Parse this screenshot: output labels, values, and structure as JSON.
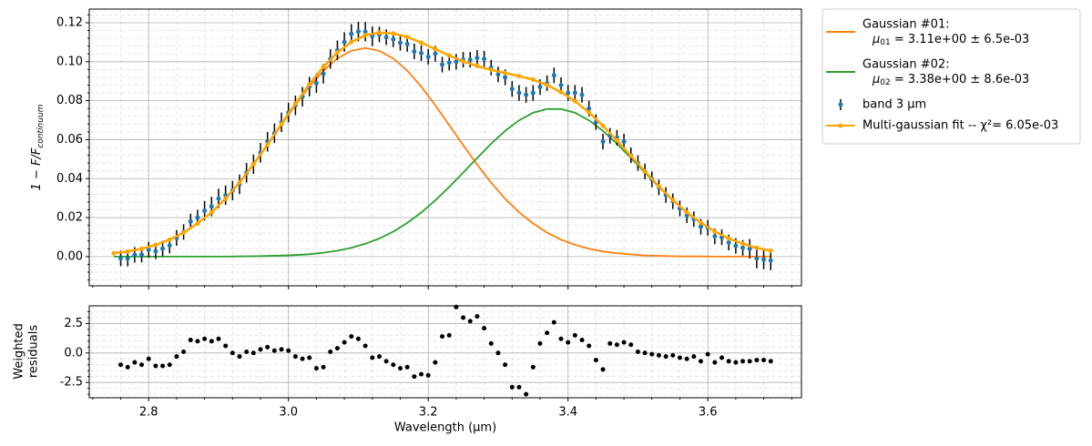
{
  "chart_data": [
    {
      "type": "line",
      "ylabel": {
        "text": "1 − F/F",
        "sub": "continuum"
      },
      "ylim": [
        -0.015,
        0.127
      ],
      "yticks": [
        {
          "value": 0,
          "label": "0.00"
        },
        {
          "value": 0.02,
          "label": "0.02"
        },
        {
          "value": 0.04,
          "label": "0.04"
        },
        {
          "value": 0.06,
          "label": "0.06"
        },
        {
          "value": 0.08,
          "label": "0.08"
        },
        {
          "value": 0.1,
          "label": "0.10"
        },
        {
          "value": 0.12,
          "label": "0.12"
        }
      ],
      "yminorticks": [
        -0.012,
        -0.008,
        -0.004,
        0.004,
        0.008,
        0.012,
        0.016,
        0.024,
        0.028,
        0.032,
        0.036,
        0.044,
        0.048,
        0.052,
        0.056,
        0.064,
        0.068,
        0.072,
        0.076,
        0.084,
        0.088,
        0.092,
        0.096,
        0.104,
        0.108,
        0.112,
        0.116,
        0.124
      ],
      "grid": true,
      "legend": "outside-right",
      "series": [
        {
          "name": "Gaussian #01:",
          "detail": {
            "symbol": "μ",
            "sub": "01",
            "text": " =  3.11e+00 ±  6.5e-03"
          },
          "color": "#ff7f0e",
          "x": [
            2.75,
            2.77,
            2.79,
            2.81,
            2.83,
            2.85,
            2.87,
            2.89,
            2.91,
            2.93,
            2.95,
            2.97,
            2.99,
            3.01,
            3.03,
            3.05,
            3.07,
            3.09,
            3.11,
            3.13,
            3.15,
            3.17,
            3.19,
            3.21,
            3.23,
            3.25,
            3.27,
            3.29,
            3.31,
            3.33,
            3.35,
            3.37,
            3.39,
            3.41,
            3.43,
            3.45,
            3.47,
            3.49,
            3.51,
            3.53,
            3.55,
            3.57,
            3.59,
            3.61,
            3.63,
            3.65,
            3.67,
            3.69
          ],
          "values": [
            0.0017,
            0.0026,
            0.004,
            0.006,
            0.0087,
            0.0123,
            0.017,
            0.0227,
            0.0297,
            0.0379,
            0.0472,
            0.0571,
            0.0675,
            0.0777,
            0.0872,
            0.0954,
            0.1017,
            0.1056,
            0.107,
            0.1056,
            0.1017,
            0.0954,
            0.0872,
            0.0777,
            0.0675,
            0.0571,
            0.0472,
            0.0379,
            0.0297,
            0.0227,
            0.017,
            0.0123,
            0.0087,
            0.006,
            0.004,
            0.0026,
            0.0017,
            0.0011,
            0.0006,
            0.0004,
            0.0002,
            0.0001,
            0.0001,
            0,
            0,
            0,
            0,
            0
          ]
        },
        {
          "name": "Gaussian #02:",
          "detail": {
            "symbol": "μ",
            "sub": "02",
            "text": " =  3.38e+00 ±  8.6e-03"
          },
          "color": "#2ca02c",
          "x": [
            2.75,
            2.77,
            2.79,
            2.81,
            2.83,
            2.85,
            2.87,
            2.89,
            2.91,
            2.93,
            2.95,
            2.97,
            2.99,
            3.01,
            3.03,
            3.05,
            3.07,
            3.09,
            3.11,
            3.13,
            3.15,
            3.17,
            3.19,
            3.21,
            3.23,
            3.25,
            3.27,
            3.29,
            3.31,
            3.33,
            3.35,
            3.37,
            3.39,
            3.41,
            3.43,
            3.45,
            3.47,
            3.49,
            3.51,
            3.53,
            3.55,
            3.57,
            3.59,
            3.61,
            3.63,
            3.65,
            3.67,
            3.69
          ],
          "values": [
            0,
            0,
            0,
            0,
            0,
            0,
            0,
            0,
            0,
            0.0001,
            0.0002,
            0.0003,
            0.0005,
            0.0008,
            0.0012,
            0.002,
            0.003,
            0.0045,
            0.0066,
            0.0093,
            0.0128,
            0.0173,
            0.0226,
            0.0288,
            0.0357,
            0.0431,
            0.0506,
            0.0579,
            0.0645,
            0.0699,
            0.0738,
            0.0757,
            0.0757,
            0.0738,
            0.0699,
            0.0645,
            0.0579,
            0.0506,
            0.0431,
            0.0357,
            0.0288,
            0.0226,
            0.0173,
            0.0128,
            0.0093,
            0.0066,
            0.0045,
            0.003
          ]
        },
        {
          "name": "band 3 μm",
          "color": "#1f77b4",
          "error_color": "#000000",
          "x": [
            2.76,
            2.77,
            2.78,
            2.79,
            2.8,
            2.81,
            2.82,
            2.83,
            2.84,
            2.85,
            2.86,
            2.87,
            2.88,
            2.89,
            2.9,
            2.91,
            2.92,
            2.93,
            2.94,
            2.95,
            2.96,
            2.97,
            2.98,
            2.99,
            3,
            3.01,
            3.02,
            3.03,
            3.04,
            3.05,
            3.06,
            3.07,
            3.08,
            3.09,
            3.1,
            3.11,
            3.12,
            3.13,
            3.14,
            3.15,
            3.16,
            3.17,
            3.18,
            3.19,
            3.2,
            3.21,
            3.22,
            3.23,
            3.24,
            3.25,
            3.26,
            3.27,
            3.28,
            3.29,
            3.3,
            3.31,
            3.32,
            3.33,
            3.34,
            3.35,
            3.36,
            3.37,
            3.38,
            3.39,
            3.4,
            3.41,
            3.42,
            3.43,
            3.44,
            3.45,
            3.46,
            3.47,
            3.48,
            3.49,
            3.5,
            3.51,
            3.52,
            3.53,
            3.54,
            3.55,
            3.56,
            3.57,
            3.58,
            3.59,
            3.6,
            3.61,
            3.62,
            3.63,
            3.64,
            3.65,
            3.66,
            3.67,
            3.68,
            3.69
          ],
          "values": [
            -0.0009,
            -0.001,
            0.0009,
            0.001,
            0.0035,
            0.0027,
            0.0041,
            0.0057,
            0.0096,
            0.0126,
            0.018,
            0.02,
            0.0235,
            0.0257,
            0.0298,
            0.0315,
            0.0339,
            0.0371,
            0.043,
            0.0474,
            0.0533,
            0.0589,
            0.0633,
            0.0689,
            0.0739,
            0.0776,
            0.082,
            0.0872,
            0.089,
            0.0938,
            0.1014,
            0.1059,
            0.1101,
            0.1143,
            0.1155,
            0.1154,
            0.1131,
            0.114,
            0.1126,
            0.1115,
            0.1097,
            0.1091,
            0.1053,
            0.1044,
            0.1025,
            0.1041,
            0.0985,
            0.0995,
            0.1,
            0.101,
            0.101,
            0.102,
            0.1015,
            0.097,
            0.0935,
            0.092,
            0.086,
            0.084,
            0.083,
            0.084,
            0.087,
            0.089,
            0.093,
            0.088,
            0.084,
            0.084,
            0.083,
            0.076,
            0.069,
            0.059,
            0.062,
            0.061,
            0.059,
            0.052,
            0.048,
            0.0437,
            0.0396,
            0.0355,
            0.0316,
            0.0284,
            0.0247,
            0.0212,
            0.0192,
            0.0153,
            0.0148,
            0.0104,
            0.0099,
            0.0072,
            0.0055,
            0.0045,
            0.004,
            -0.001,
            -0.0015,
            -0.002
          ],
          "errors": [
            0.004,
            0.004,
            0.004,
            0.004,
            0.004,
            0.004,
            0.004,
            0.004,
            0.004,
            0.004,
            0.004,
            0.004,
            0.005,
            0.005,
            0.005,
            0.005,
            0.005,
            0.005,
            0.005,
            0.005,
            0.005,
            0.005,
            0.005,
            0.005,
            0.005,
            0.005,
            0.005,
            0.005,
            0.005,
            0.005,
            0.005,
            0.005,
            0.005,
            0.005,
            0.005,
            0.005,
            0.005,
            0.004,
            0.004,
            0.004,
            0.004,
            0.004,
            0.004,
            0.004,
            0.004,
            0.004,
            0.004,
            0.004,
            0.004,
            0.004,
            0.004,
            0.004,
            0.004,
            0.004,
            0.004,
            0.004,
            0.004,
            0.004,
            0.004,
            0.004,
            0.004,
            0.004,
            0.004,
            0.004,
            0.004,
            0.004,
            0.004,
            0.004,
            0.004,
            0.004,
            0.004,
            0.004,
            0.004,
            0.004,
            0.004,
            0.004,
            0.004,
            0.004,
            0.004,
            0.004,
            0.004,
            0.004,
            0.004,
            0.004,
            0.004,
            0.004,
            0.004,
            0.004,
            0.004,
            0.004,
            0.005,
            0.005,
            0.005,
            0.005
          ]
        },
        {
          "name": "Multi-gaussian fit -- χ²=  6.05e-03",
          "color": "#ffa500",
          "x": [
            2.75,
            2.77,
            2.79,
            2.81,
            2.83,
            2.85,
            2.87,
            2.89,
            2.91,
            2.93,
            2.95,
            2.97,
            2.99,
            3.01,
            3.03,
            3.05,
            3.07,
            3.09,
            3.11,
            3.13,
            3.15,
            3.17,
            3.19,
            3.21,
            3.23,
            3.25,
            3.27,
            3.29,
            3.31,
            3.33,
            3.35,
            3.37,
            3.39,
            3.41,
            3.43,
            3.45,
            3.47,
            3.49,
            3.51,
            3.53,
            3.55,
            3.57,
            3.59,
            3.61,
            3.63,
            3.65,
            3.67,
            3.69
          ],
          "values": [
            0.0017,
            0.0026,
            0.004,
            0.006,
            0.0087,
            0.0123,
            0.017,
            0.0227,
            0.0297,
            0.038,
            0.0474,
            0.0574,
            0.068,
            0.0785,
            0.0884,
            0.0974,
            0.1047,
            0.1101,
            0.1136,
            0.1149,
            0.1145,
            0.1127,
            0.1098,
            0.1065,
            0.1032,
            0.1002,
            0.0978,
            0.0958,
            0.0942,
            0.0926,
            0.0908,
            0.088,
            0.0844,
            0.0798,
            0.0739,
            0.0671,
            0.0596,
            0.0517,
            0.0437,
            0.0361,
            0.029,
            0.0227,
            0.0174,
            0.0128,
            0.0093,
            0.0066,
            0.0045,
            0.003
          ]
        }
      ]
    },
    {
      "type": "scatter",
      "ylabel": [
        "Weighted",
        "residuals"
      ],
      "xlabel": "Wavelength (μm)",
      "color": "#000000",
      "xlim": [
        2.715,
        3.734
      ],
      "xticks": [
        2.8,
        {
          "value": 3,
          "label": "3.0"
        },
        3.2,
        3.4,
        3.6
      ],
      "xminorticks": [
        2.72,
        2.76,
        2.84,
        2.88,
        2.92,
        2.96,
        3.04,
        3.08,
        3.12,
        3.16,
        3.24,
        3.28,
        3.32,
        3.36,
        3.44,
        3.48,
        3.52,
        3.56,
        3.64,
        3.68,
        3.72
      ],
      "ylim": [
        -3.8,
        4.0
      ],
      "yticks": [
        -2.5,
        {
          "value": 0,
          "label": "0.0"
        },
        2.5
      ],
      "yminorticks": [
        -3.5,
        -3,
        -2,
        -1.5,
        -1,
        -0.5,
        0.5,
        1,
        1.5,
        2,
        3,
        3.5
      ],
      "grid": true,
      "x": [
        2.76,
        2.77,
        2.78,
        2.79,
        2.8,
        2.81,
        2.82,
        2.83,
        2.84,
        2.85,
        2.86,
        2.87,
        2.88,
        2.89,
        2.9,
        2.91,
        2.92,
        2.93,
        2.94,
        2.95,
        2.96,
        2.97,
        2.98,
        2.99,
        3,
        3.01,
        3.02,
        3.03,
        3.04,
        3.05,
        3.06,
        3.07,
        3.08,
        3.09,
        3.1,
        3.11,
        3.12,
        3.13,
        3.14,
        3.15,
        3.16,
        3.17,
        3.18,
        3.19,
        3.2,
        3.21,
        3.22,
        3.23,
        3.24,
        3.25,
        3.26,
        3.27,
        3.28,
        3.29,
        3.3,
        3.31,
        3.32,
        3.33,
        3.34,
        3.35,
        3.36,
        3.37,
        3.38,
        3.39,
        3.4,
        3.41,
        3.42,
        3.43,
        3.44,
        3.45,
        3.46,
        3.47,
        3.48,
        3.49,
        3.5,
        3.51,
        3.52,
        3.53,
        3.54,
        3.55,
        3.56,
        3.57,
        3.58,
        3.59,
        3.6,
        3.61,
        3.62,
        3.63,
        3.64,
        3.65,
        3.66,
        3.67,
        3.68,
        3.69
      ],
      "values": [
        -1.0,
        -1.2,
        -0.8,
        -1.0,
        -0.5,
        -1.1,
        -1.1,
        -1.0,
        -0.3,
        0.1,
        1.1,
        1.0,
        1.2,
        1.0,
        1.2,
        0.6,
        0.0,
        -0.3,
        0.1,
        0.0,
        0.3,
        0.5,
        0.2,
        0.3,
        0.2,
        -0.3,
        -0.5,
        -0.4,
        -1.3,
        -1.2,
        0.1,
        0.4,
        0.9,
        1.4,
        1.2,
        0.6,
        -0.4,
        -0.3,
        -0.7,
        -1.0,
        -1.3,
        -1.2,
        -2.0,
        -1.8,
        -1.9,
        -0.8,
        1.4,
        1.5,
        3.9,
        3.0,
        2.7,
        3.1,
        2.1,
        0.8,
        0.0,
        -1.0,
        -2.9,
        -2.9,
        -3.5,
        -1.2,
        0.8,
        1.7,
        2.6,
        1.2,
        0.9,
        1.5,
        1.1,
        0.6,
        -0.6,
        -1.4,
        0.8,
        0.7,
        0.9,
        0.7,
        0.1,
        0.0,
        -0.1,
        -0.2,
        -0.3,
        -0.2,
        -0.4,
        -0.5,
        -0.3,
        -0.7,
        -0.1,
        -0.8,
        -0.4,
        -0.7,
        -0.8,
        -0.7,
        -0.7,
        -0.6,
        -0.6,
        -0.7
      ]
    }
  ]
}
